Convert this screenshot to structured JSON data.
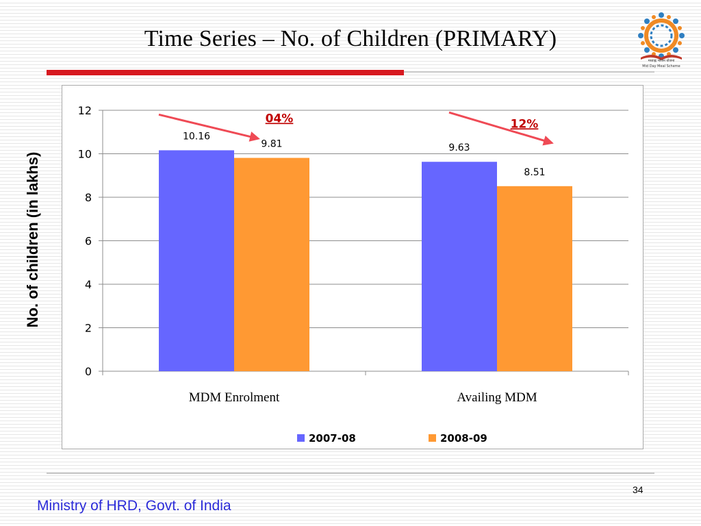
{
  "slide": {
    "title": "Time Series – No. of Children (PRIMARY)",
    "page_number": "34",
    "footer": "Ministry of HRD, Govt. of India",
    "logo_caption_hindi": "मध्याह्न भोजन योजना",
    "logo_caption_english": "Mid Day Meal Scheme"
  },
  "chart_data": {
    "type": "bar",
    "title": "",
    "xlabel": "",
    "ylabel": "No. of children (in lakhs)",
    "categories": [
      "MDM Enrolment",
      "Availing MDM"
    ],
    "series": [
      {
        "name": "2007-08",
        "values": [
          10.16,
          9.63
        ],
        "labels": [
          "10.16",
          "9.63"
        ],
        "color": "#6666ff"
      },
      {
        "name": "2008-09",
        "values": [
          9.81,
          8.51
        ],
        "labels": [
          "9.81",
          "8.51"
        ],
        "color": "#ff9933"
      }
    ],
    "ylim": [
      0,
      12
    ],
    "yticks": [
      0,
      2,
      4,
      6,
      8,
      10,
      12
    ],
    "grid": true,
    "legend": "bottom",
    "annotations": [
      {
        "text": "04%",
        "category": "MDM Enrolment"
      },
      {
        "text": "12%",
        "category": "Availing MDM"
      }
    ],
    "annotation_color": "#c00000",
    "arrow_color": "#ef4a55"
  }
}
